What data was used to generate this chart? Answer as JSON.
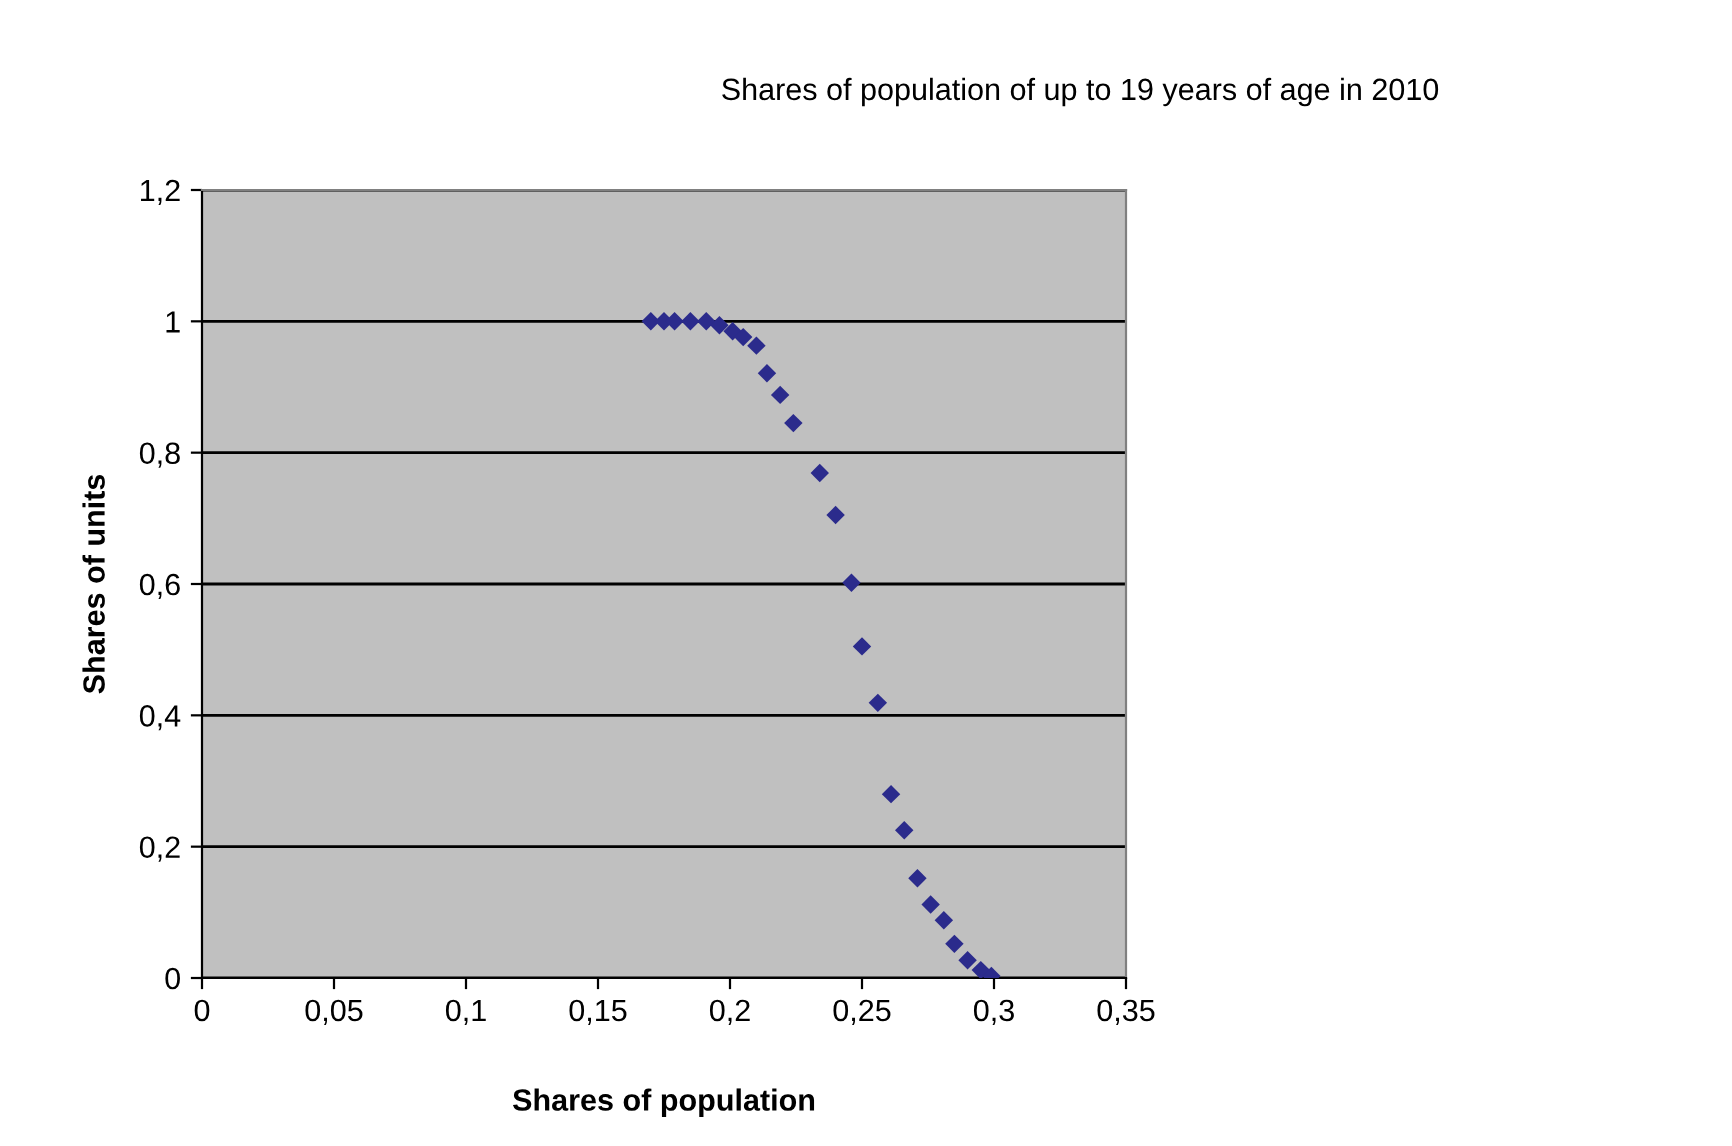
{
  "chart_data": {
    "type": "scatter",
    "title": "Shares of population of up to 19 years of age in 2010",
    "xlabel": "Shares of population",
    "ylabel": "Shares of units",
    "x": [
      0.17,
      0.175,
      0.179,
      0.185,
      0.191,
      0.196,
      0.201,
      0.205,
      0.21,
      0.214,
      0.219,
      0.224,
      0.234,
      0.24,
      0.246,
      0.25,
      0.256,
      0.261,
      0.266,
      0.271,
      0.276,
      0.281,
      0.285,
      0.29,
      0.295,
      0.299
    ],
    "series": [
      {
        "color": "#2b2b8c",
        "values": [
          1,
          1,
          1,
          1,
          1,
          0.994,
          0.985,
          0.976,
          0.963,
          0.921,
          0.888,
          0.845,
          0.769,
          0.705,
          0.602,
          0.505,
          0.419,
          0.28,
          0.225,
          0.152,
          0.112,
          0.088,
          0.052,
          0.027,
          0.012,
          0.003
        ]
      }
    ],
    "xlim": [
      0,
      0.35
    ],
    "ylim": [
      0,
      1.2
    ],
    "xticks": [
      0,
      {
        "value": 0.05,
        "label": "0,05"
      },
      {
        "value": 0.1,
        "label": "0,1"
      },
      {
        "value": 0.15,
        "label": "0,15"
      },
      {
        "value": 0.2,
        "label": "0,2"
      },
      {
        "value": 0.25,
        "label": "0,25"
      },
      {
        "value": 0.3,
        "label": "0,3"
      },
      {
        "value": 0.35,
        "label": "0,35"
      }
    ],
    "yticks": [
      0,
      {
        "value": 0.2,
        "label": "0,2"
      },
      {
        "value": 0.4,
        "label": "0,4"
      },
      {
        "value": 0.6,
        "label": "0,6"
      },
      {
        "value": 0.8,
        "label": "0,8"
      },
      1,
      {
        "value": 1.2,
        "label": "1,2"
      }
    ],
    "grid": "y",
    "marker": "diamond"
  }
}
